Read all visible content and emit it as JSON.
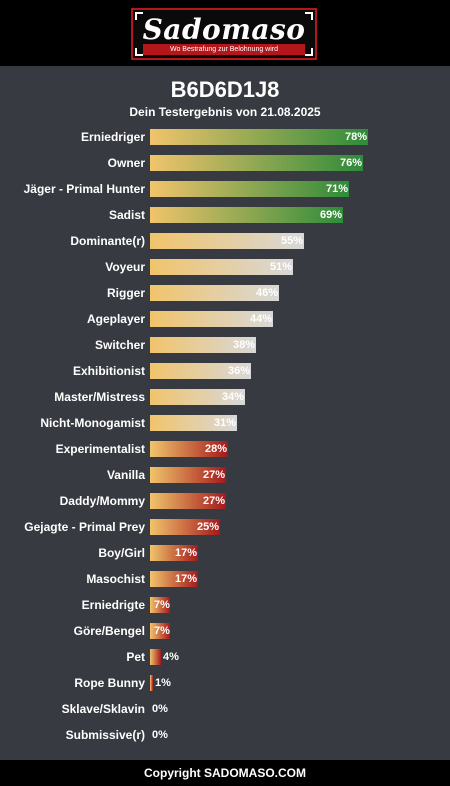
{
  "logo": {
    "word": "Sadomaso",
    "tagline": "Wo Bestrafung zur Belohnung wird"
  },
  "colors": {
    "background": "#373a41",
    "header": "#000000",
    "logo_red": "#b3161b",
    "bar_start": "#f1c46b",
    "green_end": "#2e8b3a",
    "grey_end": "#d8d8d8",
    "red_end": "#a5191c"
  },
  "chart_data": {
    "type": "bar",
    "orientation": "horizontal",
    "title": "B6D6D1J8",
    "subtitle": "Dein Testergebnis von 21.08.2025",
    "xlim": [
      0,
      100
    ],
    "unit": "%",
    "categories": [
      "Erniedriger",
      "Owner",
      "Jäger - Primal Hunter",
      "Sadist",
      "Dominante(r)",
      "Voyeur",
      "Rigger",
      "Ageplayer",
      "Switcher",
      "Exhibitionist",
      "Master/Mistress",
      "Nicht-Monogamist",
      "Experimentalist",
      "Vanilla",
      "Daddy/Mommy",
      "Gejagte - Primal Prey",
      "Boy/Girl",
      "Masochist",
      "Erniedrigte",
      "Göre/Bengel",
      "Pet",
      "Rope Bunny",
      "Sklave/Sklavin",
      "Submissive(r)"
    ],
    "values": [
      78,
      76,
      71,
      69,
      55,
      51,
      46,
      44,
      38,
      36,
      34,
      31,
      28,
      27,
      27,
      25,
      17,
      17,
      7,
      7,
      4,
      1,
      0,
      0
    ],
    "labels": [
      "78%",
      "76%",
      "71%",
      "69%",
      "55%",
      "51%",
      "46%",
      "44%",
      "38%",
      "36%",
      "34%",
      "31%",
      "28%",
      "27%",
      "27%",
      "25%",
      "17%",
      "17%",
      "7%",
      "7%",
      "4%",
      "1%",
      "0%",
      "0%"
    ],
    "grid": false,
    "legend": "none"
  },
  "footer": {
    "copyright": "Copyright SADOMASO.COM"
  }
}
